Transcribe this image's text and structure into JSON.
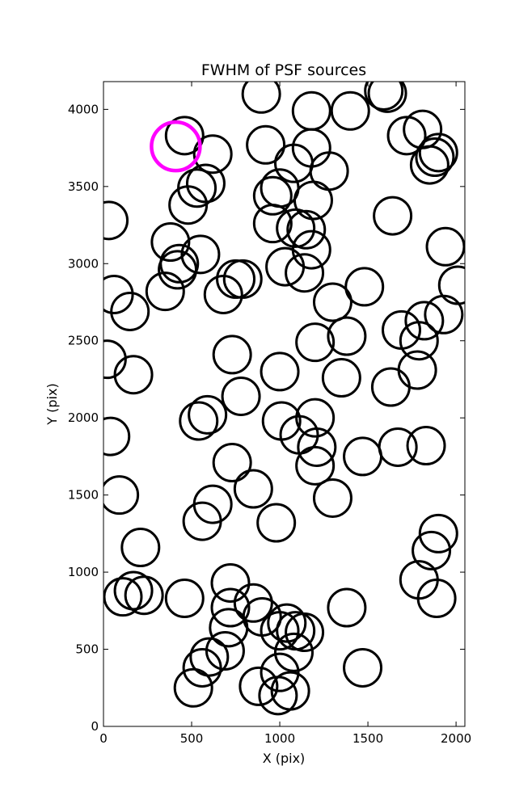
{
  "chart_data": {
    "type": "scatter",
    "title": "FWHM of PSF sources",
    "xlabel": "X (pix)",
    "ylabel": "Y (pix)",
    "xlim": [
      0,
      2050
    ],
    "ylim": [
      0,
      4180
    ],
    "xticks": [
      0,
      500,
      1000,
      1500,
      2000
    ],
    "yticks": [
      0,
      500,
      1000,
      1500,
      2000,
      2500,
      3000,
      3500,
      4000
    ],
    "grid": false,
    "marker": "open circle",
    "colors": {
      "default": "#000000",
      "highlight": "#ff00ff"
    },
    "highlight": {
      "x": 410,
      "y": 3760
    },
    "points": [
      {
        "x": 895,
        "y": 4100
      },
      {
        "x": 1590,
        "y": 4120
      },
      {
        "x": 1610,
        "y": 4105
      },
      {
        "x": 1180,
        "y": 3990
      },
      {
        "x": 1400,
        "y": 3990
      },
      {
        "x": 460,
        "y": 3830
      },
      {
        "x": 1720,
        "y": 3830
      },
      {
        "x": 1810,
        "y": 3870
      },
      {
        "x": 920,
        "y": 3770
      },
      {
        "x": 1180,
        "y": 3750
      },
      {
        "x": 620,
        "y": 3710
      },
      {
        "x": 1900,
        "y": 3720
      },
      {
        "x": 1880,
        "y": 3690
      },
      {
        "x": 1850,
        "y": 3640
      },
      {
        "x": 1080,
        "y": 3650
      },
      {
        "x": 1280,
        "y": 3600
      },
      {
        "x": 580,
        "y": 3520
      },
      {
        "x": 530,
        "y": 3490
      },
      {
        "x": 1000,
        "y": 3490
      },
      {
        "x": 960,
        "y": 3440
      },
      {
        "x": 1190,
        "y": 3410
      },
      {
        "x": 480,
        "y": 3380
      },
      {
        "x": 30,
        "y": 3280
      },
      {
        "x": 960,
        "y": 3260
      },
      {
        "x": 1090,
        "y": 3230
      },
      {
        "x": 1150,
        "y": 3220
      },
      {
        "x": 1640,
        "y": 3310
      },
      {
        "x": 1940,
        "y": 3110
      },
      {
        "x": 380,
        "y": 3140
      },
      {
        "x": 1180,
        "y": 3090
      },
      {
        "x": 550,
        "y": 3060
      },
      {
        "x": 430,
        "y": 3000
      },
      {
        "x": 420,
        "y": 2960
      },
      {
        "x": 1030,
        "y": 2980
      },
      {
        "x": 1140,
        "y": 2940
      },
      {
        "x": 750,
        "y": 2900
      },
      {
        "x": 790,
        "y": 2900
      },
      {
        "x": 680,
        "y": 2800
      },
      {
        "x": 350,
        "y": 2820
      },
      {
        "x": 60,
        "y": 2800
      },
      {
        "x": 2010,
        "y": 2860
      },
      {
        "x": 1480,
        "y": 2850
      },
      {
        "x": 1300,
        "y": 2750
      },
      {
        "x": 150,
        "y": 2690
      },
      {
        "x": 1930,
        "y": 2670
      },
      {
        "x": 1820,
        "y": 2630
      },
      {
        "x": 1690,
        "y": 2570
      },
      {
        "x": 1380,
        "y": 2530
      },
      {
        "x": 1200,
        "y": 2490
      },
      {
        "x": 1790,
        "y": 2500
      },
      {
        "x": 20,
        "y": 2380
      },
      {
        "x": 730,
        "y": 2410
      },
      {
        "x": 1000,
        "y": 2300
      },
      {
        "x": 1780,
        "y": 2310
      },
      {
        "x": 170,
        "y": 2280
      },
      {
        "x": 1350,
        "y": 2260
      },
      {
        "x": 1630,
        "y": 2200
      },
      {
        "x": 780,
        "y": 2140
      },
      {
        "x": 590,
        "y": 2020
      },
      {
        "x": 540,
        "y": 1980
      },
      {
        "x": 1010,
        "y": 1980
      },
      {
        "x": 1200,
        "y": 2000
      },
      {
        "x": 1110,
        "y": 1890
      },
      {
        "x": 40,
        "y": 1880
      },
      {
        "x": 1210,
        "y": 1810
      },
      {
        "x": 1670,
        "y": 1810
      },
      {
        "x": 1830,
        "y": 1820
      },
      {
        "x": 1470,
        "y": 1750
      },
      {
        "x": 730,
        "y": 1710
      },
      {
        "x": 1200,
        "y": 1690
      },
      {
        "x": 850,
        "y": 1540
      },
      {
        "x": 1300,
        "y": 1480
      },
      {
        "x": 90,
        "y": 1500
      },
      {
        "x": 620,
        "y": 1440
      },
      {
        "x": 560,
        "y": 1330
      },
      {
        "x": 980,
        "y": 1320
      },
      {
        "x": 1900,
        "y": 1250
      },
      {
        "x": 1860,
        "y": 1140
      },
      {
        "x": 210,
        "y": 1160
      },
      {
        "x": 1790,
        "y": 950
      },
      {
        "x": 720,
        "y": 930
      },
      {
        "x": 170,
        "y": 880
      },
      {
        "x": 110,
        "y": 840
      },
      {
        "x": 230,
        "y": 850
      },
      {
        "x": 460,
        "y": 830
      },
      {
        "x": 1890,
        "y": 830
      },
      {
        "x": 850,
        "y": 800
      },
      {
        "x": 720,
        "y": 770
      },
      {
        "x": 1380,
        "y": 770
      },
      {
        "x": 900,
        "y": 710
      },
      {
        "x": 1040,
        "y": 670
      },
      {
        "x": 710,
        "y": 640
      },
      {
        "x": 1000,
        "y": 620
      },
      {
        "x": 1090,
        "y": 620
      },
      {
        "x": 1140,
        "y": 610
      },
      {
        "x": 690,
        "y": 490
      },
      {
        "x": 1080,
        "y": 480
      },
      {
        "x": 600,
        "y": 450
      },
      {
        "x": 560,
        "y": 380
      },
      {
        "x": 1470,
        "y": 380
      },
      {
        "x": 1000,
        "y": 350
      },
      {
        "x": 880,
        "y": 260
      },
      {
        "x": 1060,
        "y": 230
      },
      {
        "x": 990,
        "y": 200
      },
      {
        "x": 510,
        "y": 250
      }
    ]
  }
}
